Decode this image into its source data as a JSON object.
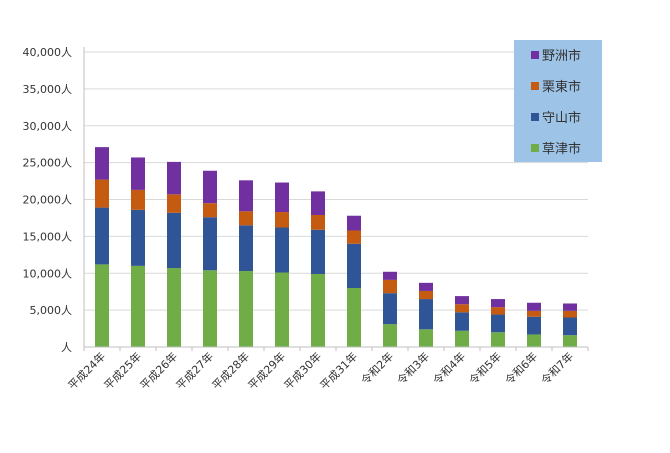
{
  "chart_data": {
    "type": "bar",
    "stacked": true,
    "categories": [
      "平成24年",
      "平成25年",
      "平成26年",
      "平成27年",
      "平成28年",
      "平成29年",
      "平成30年",
      "平成31年",
      "令和2年",
      "令和3年",
      "令和4年",
      "令和5年",
      "令和6年",
      "令和7年"
    ],
    "series": [
      {
        "name": "草津市",
        "color": "#70AD47",
        "values": [
          11200,
          11000,
          10700,
          10400,
          10300,
          10100,
          9900,
          8000,
          3100,
          2400,
          2200,
          2000,
          1700,
          1600
        ]
      },
      {
        "name": "守山市",
        "color": "#2F5597",
        "values": [
          7700,
          7600,
          7500,
          7200,
          6200,
          6100,
          6000,
          6000,
          4200,
          4100,
          2500,
          2400,
          2400,
          2400
        ]
      },
      {
        "name": "栗東市",
        "color": "#C55A11",
        "values": [
          3800,
          2700,
          2500,
          1900,
          1900,
          2100,
          2000,
          1800,
          1800,
          1100,
          1100,
          1000,
          800,
          900
        ]
      },
      {
        "name": "野洲市",
        "color": "#7030A0",
        "values": [
          4400,
          4400,
          4400,
          4400,
          4200,
          4000,
          3200,
          2000,
          1100,
          1100,
          1100,
          1100,
          1100,
          1000
        ]
      }
    ],
    "ylim": [
      0,
      40000
    ],
    "yticks": [
      {
        "value": 0,
        "label": "人"
      },
      {
        "value": 5000,
        "label": "5,000人"
      },
      {
        "value": 10000,
        "label": "10,000人"
      },
      {
        "value": 15000,
        "label": "15,000人"
      },
      {
        "value": 20000,
        "label": "20,000人"
      },
      {
        "value": 25000,
        "label": "25,000人"
      },
      {
        "value": 30000,
        "label": "30,000人"
      },
      {
        "value": 35000,
        "label": "35,000人"
      },
      {
        "value": 40000,
        "label": "40,000人"
      }
    ],
    "grid": true,
    "legend": {
      "position": "top-right",
      "background": "#9DC3E6",
      "order": [
        "野洲市",
        "栗東市",
        "守山市",
        "草津市"
      ]
    }
  }
}
